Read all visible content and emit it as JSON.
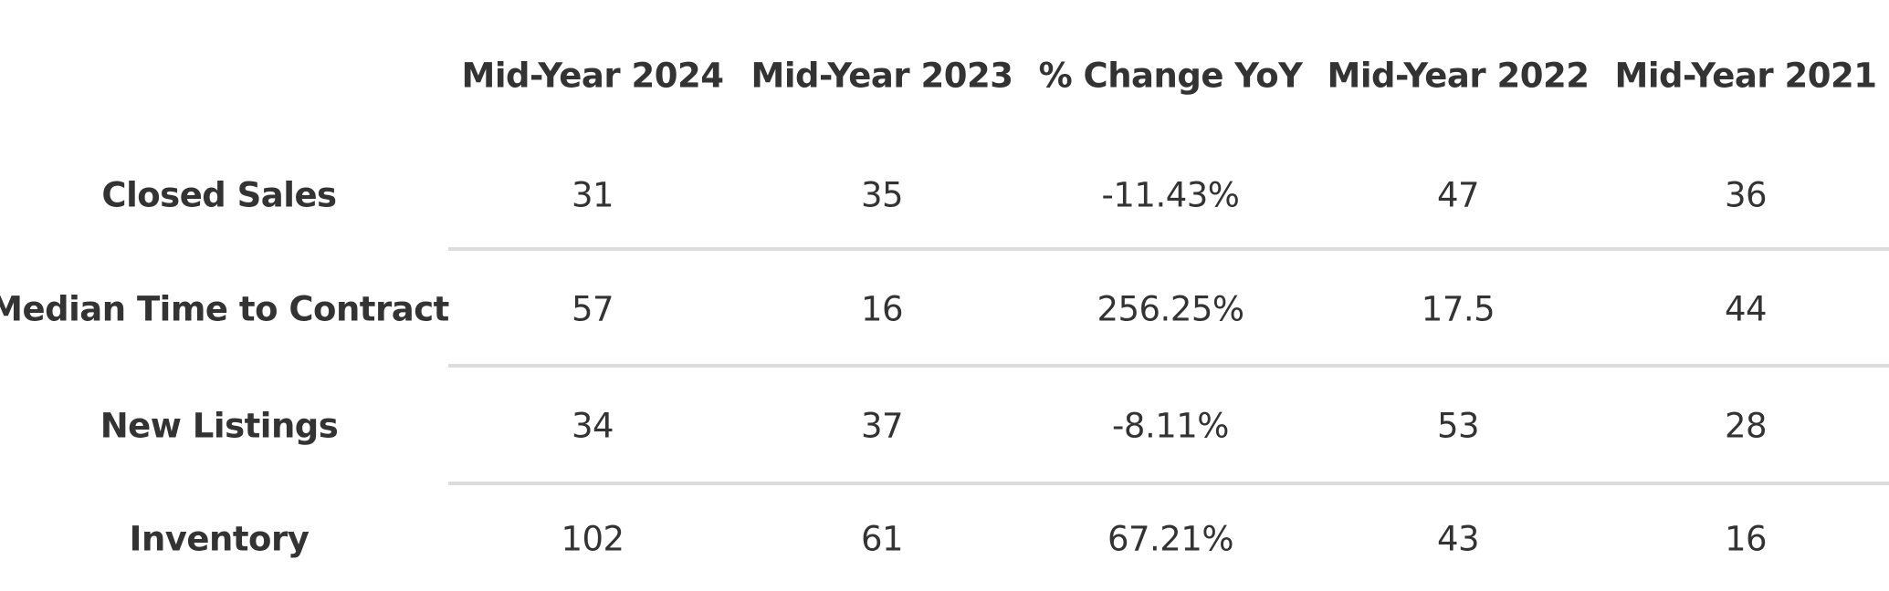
{
  "table": {
    "columns": [
      "Mid-Year 2024",
      "Mid-Year 2023",
      "% Change YoY",
      "Mid-Year 2022",
      "Mid-Year 2021"
    ],
    "rows": [
      [
        "Closed Sales",
        "31",
        "35",
        "-11.43%",
        "47",
        "36"
      ],
      [
        "Median Time to Contract",
        "57",
        "16",
        "256.25%",
        "17.5",
        "44"
      ],
      [
        "New Listings",
        "34",
        "37",
        "-8.11%",
        "53",
        "28"
      ],
      [
        "Inventory",
        "102",
        "61",
        "67.21%",
        "43",
        "16"
      ]
    ]
  }
}
